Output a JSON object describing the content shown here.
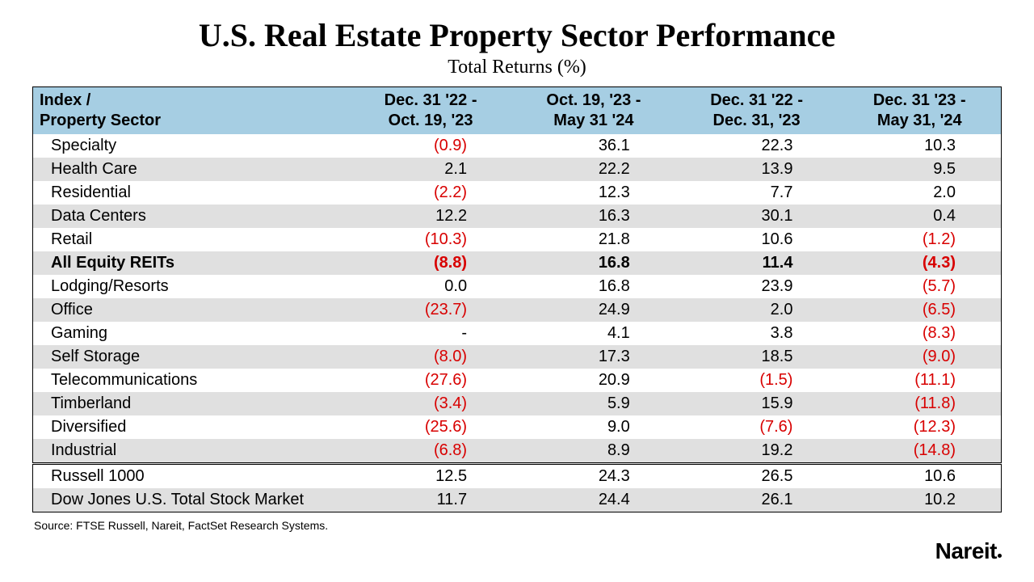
{
  "title": "U.S. Real Estate Property Sector Performance",
  "subtitle": "Total Returns (%)",
  "header": {
    "col0_line1": "Index /",
    "col0_line2": "Property Sector",
    "col1_line1": "Dec. 31 '22 -",
    "col1_line2": "Oct. 19, '23",
    "col2_line1": "Oct. 19, '23 -",
    "col2_line2": "May 31 '24",
    "col3_line1": "Dec. 31 '22 -",
    "col3_line2": "Dec. 31, '23",
    "col4_line1": "Dec. 31 '23 -",
    "col4_line2": "May 31, '24"
  },
  "colors": {
    "header_bg": "#a6cee3",
    "stripe_bg": "#e0e0e0",
    "negative_text": "#d80000",
    "text": "#000000",
    "background": "#ffffff",
    "border": "#000000"
  },
  "typography": {
    "title_font": "Georgia serif",
    "title_size_pt": 30,
    "subtitle_size_pt": 18,
    "body_font": "Arial",
    "body_size_pt": 15
  },
  "rows": [
    {
      "label": "Specialty",
      "v1": "(0.9)",
      "n1": true,
      "v2": "36.1",
      "n2": false,
      "v3": "22.3",
      "n3": false,
      "v4": "10.3",
      "n4": false,
      "bold": false,
      "stripe": false
    },
    {
      "label": "Health Care",
      "v1": "2.1",
      "n1": false,
      "v2": "22.2",
      "n2": false,
      "v3": "13.9",
      "n3": false,
      "v4": "9.5",
      "n4": false,
      "bold": false,
      "stripe": true
    },
    {
      "label": "Residential",
      "v1": "(2.2)",
      "n1": true,
      "v2": "12.3",
      "n2": false,
      "v3": "7.7",
      "n3": false,
      "v4": "2.0",
      "n4": false,
      "bold": false,
      "stripe": false
    },
    {
      "label": "Data Centers",
      "v1": "12.2",
      "n1": false,
      "v2": "16.3",
      "n2": false,
      "v3": "30.1",
      "n3": false,
      "v4": "0.4",
      "n4": false,
      "bold": false,
      "stripe": true
    },
    {
      "label": "Retail",
      "v1": "(10.3)",
      "n1": true,
      "v2": "21.8",
      "n2": false,
      "v3": "10.6",
      "n3": false,
      "v4": "(1.2)",
      "n4": true,
      "bold": false,
      "stripe": false
    },
    {
      "label": "All Equity REITs",
      "v1": "(8.8)",
      "n1": true,
      "v2": "16.8",
      "n2": false,
      "v3": "11.4",
      "n3": false,
      "v4": "(4.3)",
      "n4": true,
      "bold": true,
      "stripe": true
    },
    {
      "label": "Lodging/Resorts",
      "v1": "0.0",
      "n1": false,
      "v2": "16.8",
      "n2": false,
      "v3": "23.9",
      "n3": false,
      "v4": "(5.7)",
      "n4": true,
      "bold": false,
      "stripe": false
    },
    {
      "label": "Office",
      "v1": "(23.7)",
      "n1": true,
      "v2": "24.9",
      "n2": false,
      "v3": "2.0",
      "n3": false,
      "v4": "(6.5)",
      "n4": true,
      "bold": false,
      "stripe": true
    },
    {
      "label": "Gaming",
      "v1": "-",
      "n1": false,
      "v2": "4.1",
      "n2": false,
      "v3": "3.8",
      "n3": false,
      "v4": "(8.3)",
      "n4": true,
      "bold": false,
      "stripe": false
    },
    {
      "label": "Self Storage",
      "v1": "(8.0)",
      "n1": true,
      "v2": "17.3",
      "n2": false,
      "v3": "18.5",
      "n3": false,
      "v4": "(9.0)",
      "n4": true,
      "bold": false,
      "stripe": true
    },
    {
      "label": "Telecommunications",
      "v1": "(27.6)",
      "n1": true,
      "v2": "20.9",
      "n2": false,
      "v3": "(1.5)",
      "n3": true,
      "v4": "(11.1)",
      "n4": true,
      "bold": false,
      "stripe": false
    },
    {
      "label": "Timberland",
      "v1": "(3.4)",
      "n1": true,
      "v2": "5.9",
      "n2": false,
      "v3": "15.9",
      "n3": false,
      "v4": "(11.8)",
      "n4": true,
      "bold": false,
      "stripe": true
    },
    {
      "label": "Diversified",
      "v1": "(25.6)",
      "n1": true,
      "v2": "9.0",
      "n2": false,
      "v3": "(7.6)",
      "n3": true,
      "v4": "(12.3)",
      "n4": true,
      "bold": false,
      "stripe": false
    },
    {
      "label": "Industrial",
      "v1": "(6.8)",
      "n1": true,
      "v2": "8.9",
      "n2": false,
      "v3": "19.2",
      "n3": false,
      "v4": "(14.8)",
      "n4": true,
      "bold": false,
      "stripe": true
    }
  ],
  "benchmarks": [
    {
      "label": "Russell 1000",
      "v1": "12.5",
      "v2": "24.3",
      "v3": "26.5",
      "v4": "10.6",
      "stripe": false
    },
    {
      "label": "Dow Jones U.S. Total Stock Market",
      "v1": "11.7",
      "v2": "24.4",
      "v3": "26.1",
      "v4": "10.2",
      "stripe": true
    }
  ],
  "source": "Source: FTSE Russell, Nareit, FactSet Research Systems.",
  "logo_text": "Nareit"
}
